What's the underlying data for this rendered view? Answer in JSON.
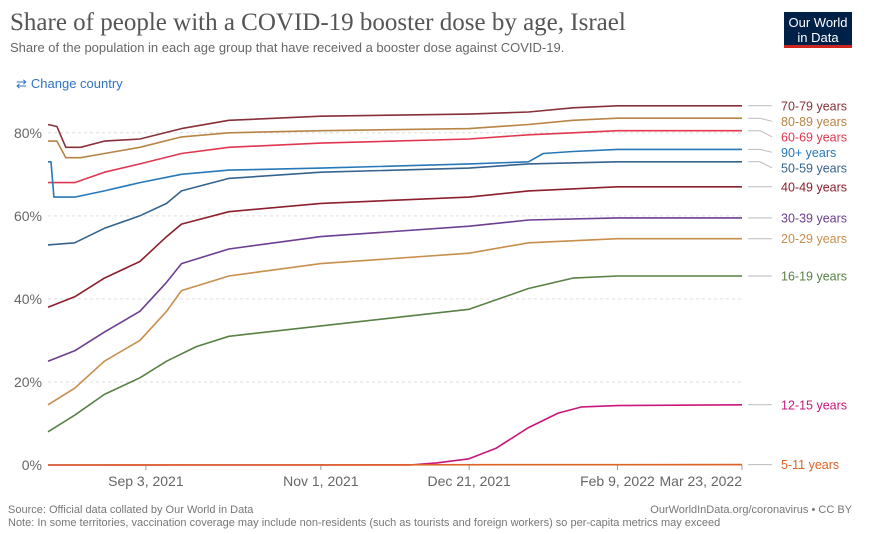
{
  "header": {
    "title": "Share of people with a COVID-19 booster dose by age, Israel",
    "subtitle": "Share of the population in each age group that have received a booster dose against COVID-19.",
    "logo_line1": "Our World",
    "logo_line2": "in Data"
  },
  "controls": {
    "change_country": "Change country"
  },
  "footer": {
    "source": "Source: Official data collated by Our World in Data",
    "url": "OurWorldInData.org/coronavirus • CC BY",
    "note": "Note: In some territories, vaccination coverage may include non-residents (such as tourists and foreign workers) so per-capita metrics may exceed"
  },
  "chart_data": {
    "type": "line",
    "x_ticks": [
      "Sep 3, 2021",
      "Nov 1, 2021",
      "Dec 21, 2021",
      "Feb 9, 2022",
      "Mar 23, 2022"
    ],
    "xlim": [
      "Aug 1, 2021",
      "Mar 23, 2022"
    ],
    "y_ticks": [
      "0%",
      "20%",
      "40%",
      "60%",
      "80%"
    ],
    "ylim": [
      0,
      85
    ],
    "grid": true,
    "series": [
      {
        "name": "70-79 years",
        "color": "#883039",
        "x": [
          "Aug 1, 2021",
          "Aug 4, 2021",
          "Aug 7, 2021",
          "Aug 12, 2021",
          "Aug 20, 2021",
          "Sep 1, 2021",
          "Sep 15, 2021",
          "Oct 1, 2021",
          "Nov 1, 2021",
          "Dec 21, 2021",
          "Jan 10, 2022",
          "Jan 25, 2022",
          "Feb 9, 2022",
          "Mar 23, 2022"
        ],
        "y": [
          82,
          81.5,
          76.5,
          76.5,
          78,
          78.5,
          81,
          83,
          84,
          84.5,
          85,
          86,
          86.5,
          86.5
        ]
      },
      {
        "name": "80-89 years",
        "color": "#b88446",
        "x": [
          "Aug 1, 2021",
          "Aug 4, 2021",
          "Aug 7, 2021",
          "Aug 12, 2021",
          "Aug 20, 2021",
          "Sep 1, 2021",
          "Sep 15, 2021",
          "Oct 1, 2021",
          "Nov 1, 2021",
          "Dec 21, 2021",
          "Jan 10, 2022",
          "Jan 25, 2022",
          "Feb 9, 2022",
          "Mar 23, 2022"
        ],
        "y": [
          78,
          78,
          74,
          74,
          75,
          76.5,
          79,
          80,
          80.5,
          81,
          82,
          83,
          83.5,
          83.5
        ]
      },
      {
        "name": "60-69 years",
        "color": "#e0374e",
        "x": [
          "Aug 1, 2021",
          "Aug 10, 2021",
          "Aug 20, 2021",
          "Sep 1, 2021",
          "Sep 15, 2021",
          "Oct 1, 2021",
          "Nov 1, 2021",
          "Dec 21, 2021",
          "Jan 10, 2022",
          "Jan 25, 2022",
          "Feb 9, 2022",
          "Mar 23, 2022"
        ],
        "y": [
          68,
          68,
          70.5,
          72.5,
          75,
          76.5,
          77.5,
          78.5,
          79.5,
          80,
          80.5,
          80.5
        ]
      },
      {
        "name": "90+ years",
        "color": "#2678b8",
        "x": [
          "Aug 1, 2021",
          "Aug 2, 2021",
          "Aug 3, 2021",
          "Aug 10, 2021",
          "Aug 20, 2021",
          "Sep 1, 2021",
          "Sep 15, 2021",
          "Oct 1, 2021",
          "Nov 1, 2021",
          "Dec 21, 2021",
          "Jan 10, 2022",
          "Jan 15, 2022",
          "Jan 25, 2022",
          "Feb 9, 2022",
          "Mar 23, 2022"
        ],
        "y": [
          73,
          73,
          64.5,
          64.5,
          66,
          68,
          70,
          71,
          71.5,
          72.5,
          73,
          75,
          75.5,
          76,
          76
        ]
      },
      {
        "name": "50-59 years",
        "color": "#36638e",
        "x": [
          "Aug 1, 2021",
          "Aug 10, 2021",
          "Aug 20, 2021",
          "Sep 1, 2021",
          "Sep 10, 2021",
          "Sep 15, 2021",
          "Oct 1, 2021",
          "Nov 1, 2021",
          "Dec 21, 2021",
          "Jan 10, 2022",
          "Feb 9, 2022",
          "Mar 23, 2022"
        ],
        "y": [
          53,
          53.5,
          57,
          60,
          63,
          66,
          69,
          70.5,
          71.5,
          72.5,
          73,
          73
        ]
      },
      {
        "name": "40-49 years",
        "color": "#8c1f2b",
        "x": [
          "Aug 1, 2021",
          "Aug 10, 2021",
          "Aug 20, 2021",
          "Sep 1, 2021",
          "Sep 10, 2021",
          "Sep 15, 2021",
          "Oct 1, 2021",
          "Nov 1, 2021",
          "Dec 21, 2021",
          "Jan 10, 2022",
          "Feb 9, 2022",
          "Mar 23, 2022"
        ],
        "y": [
          38,
          40.5,
          45,
          49,
          55,
          58,
          61,
          63,
          64.5,
          66,
          67,
          67
        ]
      },
      {
        "name": "30-39 years",
        "color": "#6d3e91",
        "x": [
          "Aug 1, 2021",
          "Aug 10, 2021",
          "Aug 20, 2021",
          "Sep 1, 2021",
          "Sep 10, 2021",
          "Sep 15, 2021",
          "Oct 1, 2021",
          "Nov 1, 2021",
          "Dec 21, 2021",
          "Jan 10, 2022",
          "Feb 9, 2022",
          "Mar 23, 2022"
        ],
        "y": [
          25,
          27.5,
          32,
          37,
          44,
          48.5,
          52,
          55,
          57.5,
          59,
          59.5,
          59.5
        ]
      },
      {
        "name": "20-29 years",
        "color": "#c78e4c",
        "x": [
          "Aug 1, 2021",
          "Aug 10, 2021",
          "Aug 20, 2021",
          "Sep 1, 2021",
          "Sep 10, 2021",
          "Sep 15, 2021",
          "Oct 1, 2021",
          "Nov 1, 2021",
          "Dec 21, 2021",
          "Jan 10, 2022",
          "Feb 9, 2022",
          "Mar 23, 2022"
        ],
        "y": [
          14.5,
          18.5,
          25,
          30,
          37,
          42,
          45.5,
          48.5,
          51,
          53.5,
          54.5,
          54.5
        ]
      },
      {
        "name": "16-19 years",
        "color": "#578145",
        "x": [
          "Aug 1, 2021",
          "Aug 10, 2021",
          "Aug 20, 2021",
          "Sep 1, 2021",
          "Sep 10, 2021",
          "Sep 20, 2021",
          "Oct 1, 2021",
          "Nov 1, 2021",
          "Dec 21, 2021",
          "Jan 10, 2022",
          "Jan 25, 2022",
          "Feb 9, 2022",
          "Mar 23, 2022"
        ],
        "y": [
          8,
          12,
          17,
          21,
          25,
          28.5,
          31,
          33.5,
          37.5,
          42.5,
          45,
          45.5,
          45.5
        ]
      },
      {
        "name": "12-15 years",
        "color": "#c9167a",
        "x": [
          "Aug 1, 2021",
          "Dec 1, 2021",
          "Dec 10, 2021",
          "Dec 21, 2021",
          "Dec 30, 2021",
          "Jan 10, 2022",
          "Jan 20, 2022",
          "Jan 28, 2022",
          "Feb 9, 2022",
          "Mar 23, 2022"
        ],
        "y": [
          0,
          0,
          0.5,
          1.5,
          4,
          9,
          12.5,
          14,
          14.3,
          14.5
        ]
      },
      {
        "name": "5-11 years",
        "color": "#dd6327",
        "x": [
          "Aug 1, 2021",
          "Mar 23, 2022"
        ],
        "y": [
          0,
          0.1
        ]
      }
    ],
    "legend_placement": "right"
  }
}
